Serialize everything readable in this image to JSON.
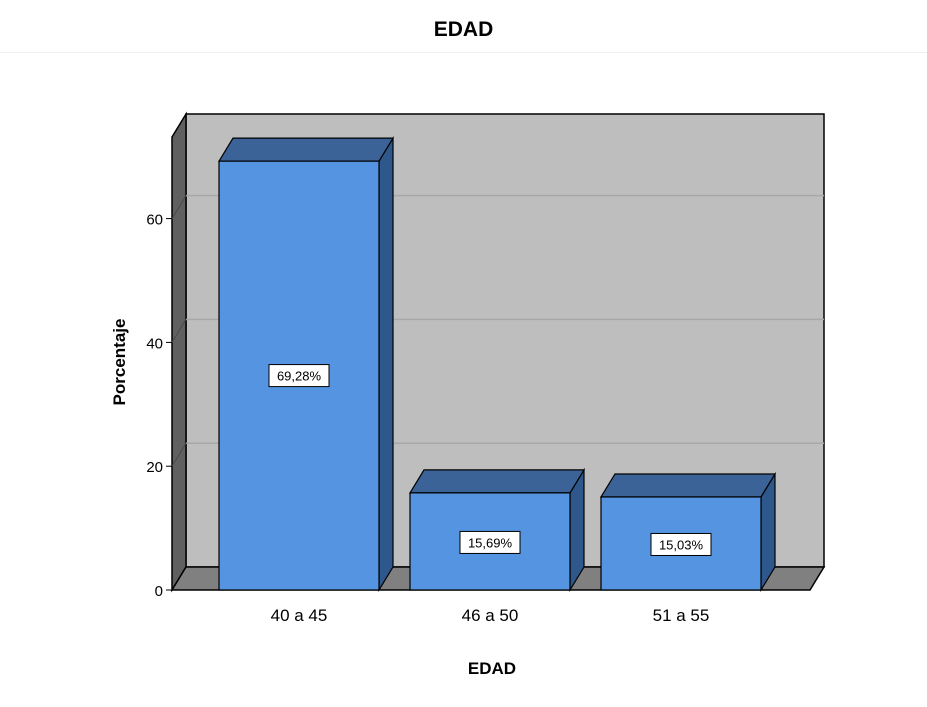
{
  "chart_data": {
    "type": "bar",
    "title": "EDAD",
    "xlabel": "EDAD",
    "ylabel": "Porcentaje",
    "categories": [
      "40 a 45",
      "46 a 50",
      "51 a 55"
    ],
    "values": [
      69.28,
      15.69,
      15.03
    ],
    "data_labels": [
      "69,28%",
      "15,69%",
      "15,03%"
    ],
    "ylim": [
      0,
      72
    ],
    "yticks": [
      0,
      20,
      40,
      60
    ],
    "grid": true,
    "three_d": true,
    "colors": {
      "bar_front": "#5494E0",
      "bar_side": "#2E578C",
      "bar_top": "#3C6398",
      "plot_back": "#BEBEBE",
      "plot_left_wall": "#606060",
      "plot_floor": "#808080",
      "gridline": "#A8A8A8"
    }
  }
}
